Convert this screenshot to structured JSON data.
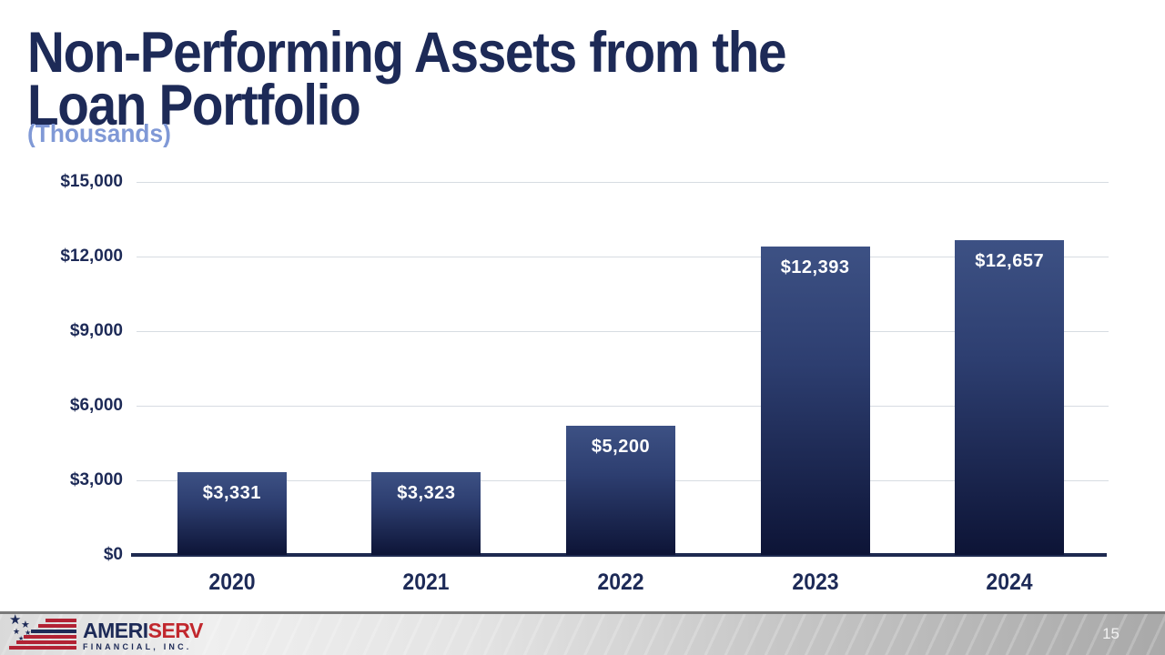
{
  "slide": {
    "title": "Non-Performing Assets from the Loan Portfolio",
    "title_lines": [
      "Non-Performing Assets from the",
      "Loan Portfolio"
    ],
    "subtitle": "(Thousands)"
  },
  "chart_data": {
    "type": "bar",
    "title": "Non-Performing Assets from the Loan Portfolio (Thousands)",
    "categories": [
      "2020",
      "2021",
      "2022",
      "2023",
      "2024"
    ],
    "values": [
      3331,
      3323,
      5200,
      12393,
      12657
    ],
    "value_labels": [
      "$3,331",
      "$3,323",
      "$5,200",
      "$12,393",
      "$12,657"
    ],
    "series": [
      {
        "name": "Non-Performing Assets",
        "values": [
          3331,
          3323,
          5200,
          12393,
          12657
        ]
      }
    ],
    "xlabel": "",
    "ylabel": "",
    "ylim": [
      0,
      15000
    ],
    "ytick_interval": 3000,
    "ytick_labels": [
      "$15,000",
      "$12,000",
      "$9,000",
      "$6,000",
      "$3,000",
      "$0"
    ],
    "grid": true,
    "legend": "none",
    "data_label_position": "inside-top",
    "colors": {
      "bar_gradient_top": "#3d5184",
      "bar_gradient_bottom": "#0d1436",
      "axis_line": "#1e2a50",
      "gridline": "#d7dce2",
      "tick_text": "#1d2a57",
      "data_label_text": "#ffffff"
    }
  },
  "footer": {
    "logo": {
      "flag_icon": "us-flag-stars-stripes-icon",
      "brand_part1": "AMERI",
      "brand_part2": "SERV",
      "brand_sub": "FINANCIAL, INC.",
      "brand_navy": "#1d2a57",
      "brand_red": "#c1272d"
    },
    "page_number": "15"
  },
  "colors": {
    "title_navy": "#1d2a57",
    "subtitle_periwinkle": "#8099d6",
    "background": "#ffffff",
    "footer_gray": "#bdbdbd"
  }
}
